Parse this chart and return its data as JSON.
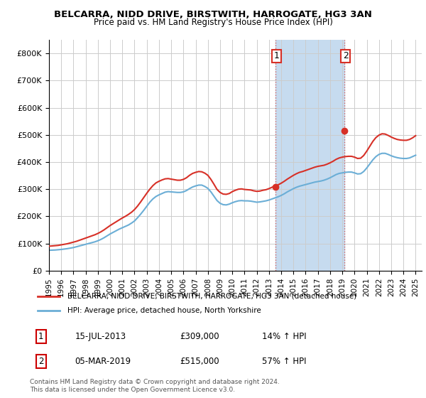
{
  "title": "BELCARRA, NIDD DRIVE, BIRSTWITH, HARROGATE, HG3 3AN",
  "subtitle": "Price paid vs. HM Land Registry's House Price Index (HPI)",
  "x_start": 1995.0,
  "x_end": 2025.5,
  "y_min": 0,
  "y_max": 850000,
  "yticks": [
    0,
    100000,
    200000,
    300000,
    400000,
    500000,
    600000,
    700000,
    800000
  ],
  "ytick_labels": [
    "£0",
    "£100K",
    "£200K",
    "£300K",
    "£400K",
    "£500K",
    "£600K",
    "£700K",
    "£800K"
  ],
  "xtick_years": [
    1995,
    1996,
    1997,
    1998,
    1999,
    2000,
    2001,
    2002,
    2003,
    2004,
    2005,
    2006,
    2007,
    2008,
    2009,
    2010,
    2011,
    2012,
    2013,
    2014,
    2015,
    2016,
    2017,
    2018,
    2019,
    2020,
    2021,
    2022,
    2023,
    2024,
    2025
  ],
  "sale1_x": 2013.54,
  "sale1_y": 309000,
  "sale1_label": "1",
  "sale2_x": 2019.17,
  "sale2_y": 515000,
  "sale2_label": "2",
  "shade_x1": 2013.54,
  "shade_x2": 2019.17,
  "hpi_color": "#6baed6",
  "price_color": "#d73027",
  "shade_color": "#c6dbef",
  "background_color": "#ffffff",
  "grid_color": "#cccccc",
  "legend_entries": [
    "BELCARRA, NIDD DRIVE, BIRSTWITH, HARROGATE, HG3 3AN (detached house)",
    "HPI: Average price, detached house, North Yorkshire"
  ],
  "table_rows": [
    {
      "num": "1",
      "date": "15-JUL-2013",
      "price": "£309,000",
      "hpi": "14% ↑ HPI"
    },
    {
      "num": "2",
      "date": "05-MAR-2019",
      "price": "£515,000",
      "hpi": "57% ↑ HPI"
    }
  ],
  "footer": "Contains HM Land Registry data © Crown copyright and database right 2024.\nThis data is licensed under the Open Government Licence v3.0.",
  "hpi_data_x": [
    1995.0,
    1995.25,
    1995.5,
    1995.75,
    1996.0,
    1996.25,
    1996.5,
    1996.75,
    1997.0,
    1997.25,
    1997.5,
    1997.75,
    1998.0,
    1998.25,
    1998.5,
    1998.75,
    1999.0,
    1999.25,
    1999.5,
    1999.75,
    2000.0,
    2000.25,
    2000.5,
    2000.75,
    2001.0,
    2001.25,
    2001.5,
    2001.75,
    2002.0,
    2002.25,
    2002.5,
    2002.75,
    2003.0,
    2003.25,
    2003.5,
    2003.75,
    2004.0,
    2004.25,
    2004.5,
    2004.75,
    2005.0,
    2005.25,
    2005.5,
    2005.75,
    2006.0,
    2006.25,
    2006.5,
    2006.75,
    2007.0,
    2007.25,
    2007.5,
    2007.75,
    2008.0,
    2008.25,
    2008.5,
    2008.75,
    2009.0,
    2009.25,
    2009.5,
    2009.75,
    2010.0,
    2010.25,
    2010.5,
    2010.75,
    2011.0,
    2011.25,
    2011.5,
    2011.75,
    2012.0,
    2012.25,
    2012.5,
    2012.75,
    2013.0,
    2013.25,
    2013.5,
    2013.75,
    2014.0,
    2014.25,
    2014.5,
    2014.75,
    2015.0,
    2015.25,
    2015.5,
    2015.75,
    2016.0,
    2016.25,
    2016.5,
    2016.75,
    2017.0,
    2017.25,
    2017.5,
    2017.75,
    2018.0,
    2018.25,
    2018.5,
    2018.75,
    2019.0,
    2019.25,
    2019.5,
    2019.75,
    2020.0,
    2020.25,
    2020.5,
    2020.75,
    2021.0,
    2021.25,
    2021.5,
    2021.75,
    2022.0,
    2022.25,
    2022.5,
    2022.75,
    2023.0,
    2023.25,
    2023.5,
    2023.75,
    2024.0,
    2024.25,
    2024.5,
    2024.75,
    2025.0
  ],
  "hpi_data_y": [
    75000,
    75500,
    76000,
    77000,
    78000,
    79500,
    81000,
    83000,
    85000,
    88000,
    91000,
    94000,
    97000,
    100000,
    103000,
    106000,
    110000,
    115000,
    121000,
    128000,
    135000,
    141000,
    147000,
    153000,
    158000,
    163000,
    168000,
    175000,
    183000,
    195000,
    208000,
    222000,
    237000,
    252000,
    264000,
    273000,
    279000,
    284000,
    289000,
    291000,
    290000,
    289000,
    288000,
    288000,
    290000,
    295000,
    302000,
    308000,
    312000,
    315000,
    315000,
    310000,
    303000,
    290000,
    274000,
    258000,
    248000,
    243000,
    242000,
    245000,
    250000,
    254000,
    257000,
    258000,
    257000,
    257000,
    256000,
    254000,
    252000,
    253000,
    255000,
    257000,
    260000,
    264000,
    268000,
    272000,
    277000,
    283000,
    290000,
    296000,
    302000,
    307000,
    311000,
    314000,
    317000,
    320000,
    323000,
    326000,
    328000,
    330000,
    333000,
    337000,
    342000,
    348000,
    354000,
    358000,
    360000,
    362000,
    363000,
    363000,
    360000,
    356000,
    357000,
    365000,
    378000,
    393000,
    408000,
    420000,
    428000,
    432000,
    432000,
    428000,
    423000,
    419000,
    416000,
    414000,
    413000,
    413000,
    415000,
    420000,
    425000
  ],
  "price_data_x": [
    1995.0,
    1995.25,
    1995.5,
    1995.75,
    1996.0,
    1996.25,
    1996.5,
    1996.75,
    1997.0,
    1997.25,
    1997.5,
    1997.75,
    1998.0,
    1998.25,
    1998.5,
    1998.75,
    1999.0,
    1999.25,
    1999.5,
    1999.75,
    2000.0,
    2000.25,
    2000.5,
    2000.75,
    2001.0,
    2001.25,
    2001.5,
    2001.75,
    2002.0,
    2002.25,
    2002.5,
    2002.75,
    2003.0,
    2003.25,
    2003.5,
    2003.75,
    2004.0,
    2004.25,
    2004.5,
    2004.75,
    2005.0,
    2005.25,
    2005.5,
    2005.75,
    2006.0,
    2006.25,
    2006.5,
    2006.75,
    2007.0,
    2007.25,
    2007.5,
    2007.75,
    2008.0,
    2008.25,
    2008.5,
    2008.75,
    2009.0,
    2009.25,
    2009.5,
    2009.75,
    2010.0,
    2010.25,
    2010.5,
    2010.75,
    2011.0,
    2011.25,
    2011.5,
    2011.75,
    2012.0,
    2012.25,
    2012.5,
    2012.75,
    2013.0,
    2013.25,
    2013.5,
    2013.75,
    2014.0,
    2014.25,
    2014.5,
    2014.75,
    2015.0,
    2015.25,
    2015.5,
    2015.75,
    2016.0,
    2016.25,
    2016.5,
    2016.75,
    2017.0,
    2017.25,
    2017.5,
    2017.75,
    2018.0,
    2018.25,
    2018.5,
    2018.75,
    2019.0,
    2019.25,
    2019.5,
    2019.75,
    2020.0,
    2020.25,
    2020.5,
    2020.75,
    2021.0,
    2021.25,
    2021.5,
    2021.75,
    2022.0,
    2022.25,
    2022.5,
    2022.75,
    2023.0,
    2023.25,
    2023.5,
    2023.75,
    2024.0,
    2024.25,
    2024.5,
    2024.75,
    2025.0
  ],
  "price_data_y": [
    90000,
    91000,
    92000,
    93000,
    95000,
    97000,
    99000,
    102000,
    105000,
    108000,
    112000,
    116000,
    120000,
    124000,
    128000,
    132000,
    137000,
    143000,
    150000,
    158000,
    166000,
    173000,
    180000,
    187000,
    194000,
    200000,
    207000,
    215000,
    225000,
    238000,
    253000,
    269000,
    285000,
    300000,
    313000,
    323000,
    329000,
    334000,
    338000,
    339000,
    337000,
    335000,
    333000,
    333000,
    336000,
    342000,
    351000,
    358000,
    362000,
    365000,
    364000,
    359000,
    351000,
    336000,
    318000,
    299000,
    288000,
    282000,
    281000,
    284000,
    291000,
    296000,
    300000,
    301000,
    299000,
    298000,
    297000,
    294000,
    292000,
    293000,
    296000,
    298000,
    302000,
    307000,
    312000,
    316000,
    322000,
    329000,
    337000,
    344000,
    351000,
    357000,
    362000,
    365000,
    369000,
    373000,
    377000,
    381000,
    384000,
    386000,
    388000,
    392000,
    397000,
    403000,
    410000,
    415000,
    418000,
    420000,
    421000,
    421000,
    418000,
    413000,
    414000,
    424000,
    440000,
    458000,
    476000,
    490000,
    499000,
    504000,
    503000,
    498000,
    492000,
    487000,
    483000,
    481000,
    480000,
    480000,
    483000,
    489000,
    497000
  ]
}
